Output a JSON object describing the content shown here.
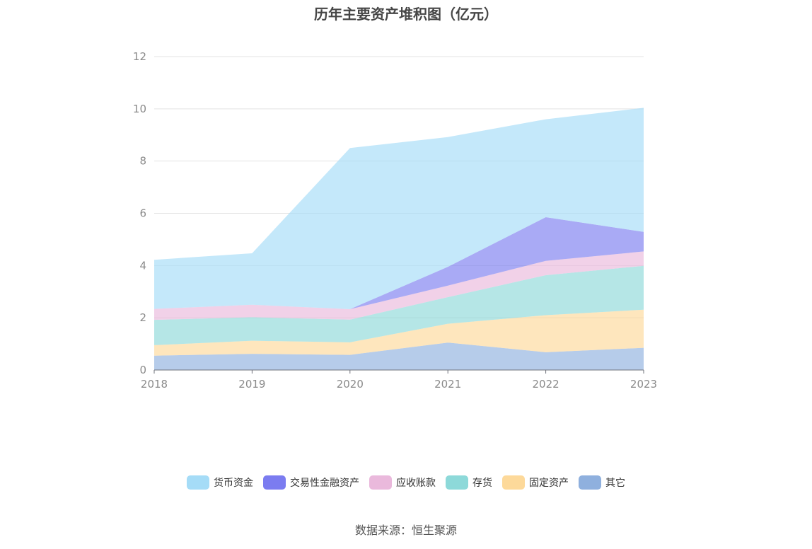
{
  "chart_data": {
    "type": "area",
    "stacked": true,
    "title": "历年主要资产堆积图（亿元）",
    "x": [
      "2018",
      "2019",
      "2020",
      "2021",
      "2022",
      "2023"
    ],
    "yticks": [
      "0",
      "2",
      "4",
      "6",
      "8",
      "10",
      "12"
    ],
    "ylim": [
      0,
      12
    ],
    "grid": true,
    "legend_position": "bottom",
    "series": [
      {
        "name": "其它",
        "color": "#8fb0de",
        "values": [
          0.55,
          0.62,
          0.58,
          1.05,
          0.68,
          0.85
        ]
      },
      {
        "name": "固定资产",
        "color": "#fdd99a",
        "values": [
          0.4,
          0.5,
          0.48,
          0.72,
          1.42,
          1.46
        ]
      },
      {
        "name": "存货",
        "color": "#8dd9d9",
        "values": [
          0.97,
          0.9,
          0.87,
          1.02,
          1.53,
          1.68
        ]
      },
      {
        "name": "应收账款",
        "color": "#eab9dc",
        "values": [
          0.42,
          0.48,
          0.4,
          0.44,
          0.55,
          0.55
        ]
      },
      {
        "name": "交易性金融资产",
        "color": "#7b7cf0",
        "values": [
          0.0,
          0.0,
          0.0,
          0.72,
          1.67,
          0.75
        ]
      },
      {
        "name": "货币资金",
        "color": "#a5dcf7",
        "values": [
          1.88,
          1.97,
          6.17,
          4.97,
          3.75,
          4.75
        ]
      }
    ]
  },
  "legend": {
    "items": [
      {
        "label": "货币资金",
        "color": "#a5dcf7"
      },
      {
        "label": "交易性金融资产",
        "color": "#7b7cf0"
      },
      {
        "label": "应收账款",
        "color": "#eab9dc"
      },
      {
        "label": "存货",
        "color": "#8dd9d9"
      },
      {
        "label": "固定资产",
        "color": "#fdd99a"
      },
      {
        "label": "其它",
        "color": "#8fb0de"
      }
    ]
  },
  "source": "数据来源：恒生聚源"
}
